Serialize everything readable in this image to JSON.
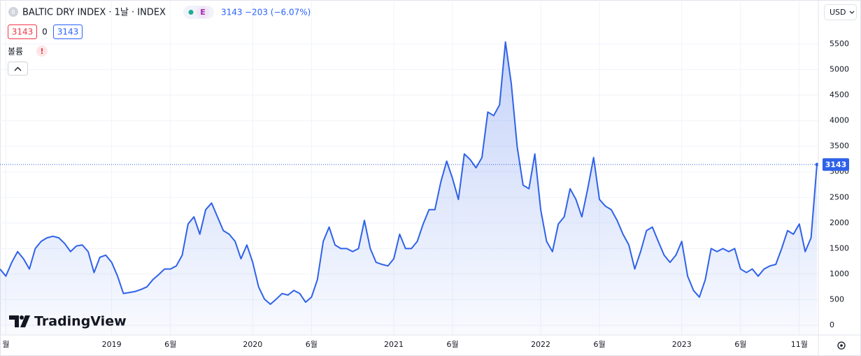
{
  "header": {
    "symbol": "BALTIC DRY INDEX · 1날 · INDEX",
    "badge": "E",
    "last": "3143",
    "change": "−203 (−6.07%)",
    "bid": "3143",
    "spread": "0",
    "ask": "3143",
    "volume": "볼륨",
    "alert": "!",
    "currency": "USD",
    "logo": "TradingView"
  },
  "chart_data": {
    "type": "line",
    "color": "#2f62e9",
    "grid": true,
    "categories": [
      null,
      "월",
      null,
      null,
      null,
      null,
      null,
      null,
      null,
      null,
      null,
      null,
      null,
      null,
      null,
      null,
      null,
      null,
      null,
      "2019",
      null,
      null,
      null,
      null,
      null,
      null,
      null,
      null,
      null,
      "6월",
      null,
      null,
      null,
      null,
      null,
      null,
      null,
      null,
      null,
      null,
      null,
      null,
      null,
      "2020",
      null,
      null,
      null,
      null,
      null,
      null,
      null,
      null,
      null,
      "6월",
      null,
      null,
      null,
      null,
      null,
      null,
      null,
      null,
      null,
      null,
      null,
      null,
      null,
      "2021",
      null,
      null,
      null,
      null,
      null,
      null,
      null,
      null,
      null,
      "6월",
      null,
      null,
      null,
      null,
      null,
      null,
      null,
      null,
      null,
      null,
      null,
      null,
      null,
      null,
      "2022",
      null,
      null,
      null,
      null,
      null,
      null,
      null,
      null,
      null,
      "6월",
      null,
      null,
      null,
      null,
      null,
      null,
      null,
      null,
      null,
      null,
      null,
      null,
      null,
      "2023",
      null,
      null,
      null,
      null,
      null,
      null,
      null,
      null,
      null,
      "6월",
      null,
      null,
      null,
      null,
      null,
      null,
      null,
      null,
      null,
      "11월",
      null,
      null,
      null
    ],
    "values": [
      1100,
      960,
      1230,
      1440,
      1300,
      1100,
      1500,
      1640,
      1710,
      1740,
      1710,
      1600,
      1440,
      1550,
      1570,
      1440,
      1030,
      1330,
      1370,
      1230,
      960,
      620,
      640,
      660,
      700,
      750,
      890,
      990,
      1100,
      1100,
      1160,
      1370,
      1980,
      2120,
      1780,
      2260,
      2390,
      2120,
      1850,
      1780,
      1640,
      1300,
      1570,
      1230,
      750,
      510,
      410,
      510,
      620,
      590,
      680,
      620,
      450,
      550,
      890,
      1640,
      1920,
      1570,
      1500,
      1500,
      1440,
      1500,
      2050,
      1500,
      1230,
      1190,
      1160,
      1300,
      1780,
      1500,
      1500,
      1640,
      1980,
      2260,
      2260,
      2800,
      3210,
      2870,
      2460,
      3350,
      3240,
      3080,
      3280,
      4170,
      4100,
      4310,
      5540,
      4720,
      3490,
      2740,
      2670,
      3350,
      2260,
      1640,
      1440,
      1980,
      2120,
      2670,
      2460,
      2120,
      2670,
      3280,
      2460,
      2330,
      2260,
      2050,
      1780,
      1570,
      1100,
      1440,
      1850,
      1920,
      1640,
      1370,
      1230,
      1370,
      1640,
      960,
      680,
      550,
      890,
      1500,
      1440,
      1500,
      1440,
      1500,
      1100,
      1030,
      1100,
      960,
      1100,
      1160,
      1190,
      1500,
      1850,
      1780,
      1980,
      1440,
      1710,
      3143
    ],
    "ylim": [
      -178,
      6252
    ],
    "yticks": [
      0,
      500,
      1000,
      1500,
      2000,
      2500,
      3000,
      3500,
      4000,
      4500,
      5000,
      5500
    ]
  }
}
